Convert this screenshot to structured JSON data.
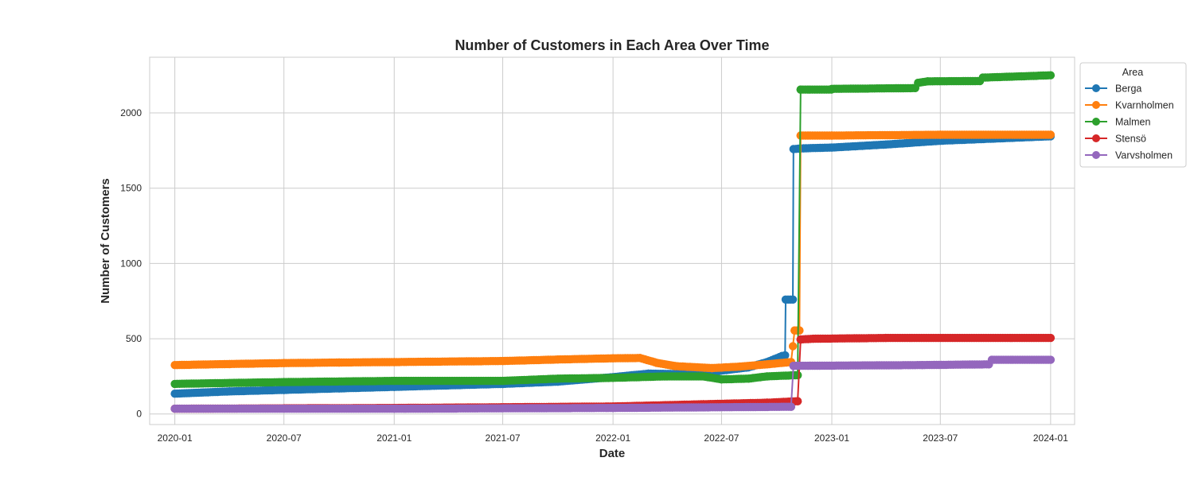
{
  "chart_data": {
    "type": "line",
    "title": "Number of Customers in Each Area Over Time",
    "xlabel": "Date",
    "ylabel": "Number of Customers",
    "x_range": [
      "2019-11-20",
      "2024-02-10"
    ],
    "ylim": [
      -70,
      2370
    ],
    "x_ticks": [
      "2020-01-01",
      "2020-07-01",
      "2021-01-01",
      "2021-07-01",
      "2022-01-01",
      "2022-07-01",
      "2023-01-01",
      "2023-07-01",
      "2024-01-01"
    ],
    "x_tick_labels": [
      "2020-01",
      "2020-07",
      "2021-01",
      "2021-07",
      "2022-01",
      "2022-07",
      "2023-01",
      "2023-07",
      "2024-01"
    ],
    "y_ticks": [
      0,
      500,
      1000,
      1500,
      2000
    ],
    "y_tick_labels": [
      "0",
      "500",
      "1000",
      "1500",
      "2000"
    ],
    "grid": true,
    "legend": {
      "title": "Area",
      "placement": "upper right, outside plot"
    },
    "series": [
      {
        "name": "Berga",
        "color": "#1f77b4",
        "points": [
          [
            "2020-01-01",
            135
          ],
          [
            "2020-04-01",
            150
          ],
          [
            "2020-07-01",
            160
          ],
          [
            "2020-10-01",
            170
          ],
          [
            "2021-01-01",
            180
          ],
          [
            "2021-04-01",
            190
          ],
          [
            "2021-07-01",
            200
          ],
          [
            "2021-10-01",
            215
          ],
          [
            "2022-01-01",
            245
          ],
          [
            "2022-03-01",
            268
          ],
          [
            "2022-05-01",
            265
          ],
          [
            "2022-06-15",
            280
          ],
          [
            "2022-08-15",
            310
          ],
          [
            "2022-09-15",
            345
          ],
          [
            "2022-10-10",
            385
          ],
          [
            "2022-10-15",
            390
          ],
          [
            "2022-10-16",
            760
          ],
          [
            "2022-10-28",
            760
          ],
          [
            "2022-10-29",
            1760
          ],
          [
            "2022-11-15",
            1765
          ],
          [
            "2023-01-01",
            1770
          ],
          [
            "2023-04-01",
            1790
          ],
          [
            "2023-07-01",
            1815
          ],
          [
            "2023-10-01",
            1830
          ],
          [
            "2024-01-01",
            1845
          ]
        ]
      },
      {
        "name": "Kvarnholmen",
        "color": "#ff7f0e",
        "points": [
          [
            "2020-01-01",
            325
          ],
          [
            "2020-04-01",
            332
          ],
          [
            "2020-07-01",
            338
          ],
          [
            "2020-10-01",
            342
          ],
          [
            "2021-01-01",
            345
          ],
          [
            "2021-07-01",
            352
          ],
          [
            "2021-10-01",
            362
          ],
          [
            "2022-01-01",
            370
          ],
          [
            "2022-02-15",
            372
          ],
          [
            "2022-03-15",
            340
          ],
          [
            "2022-04-15",
            318
          ],
          [
            "2022-06-15",
            305
          ],
          [
            "2022-08-01",
            315
          ],
          [
            "2022-09-15",
            330
          ],
          [
            "2022-10-25",
            345
          ],
          [
            "2022-10-31",
            555
          ],
          [
            "2022-11-08",
            555
          ],
          [
            "2022-11-10",
            1850
          ],
          [
            "2023-01-01",
            1850
          ],
          [
            "2023-07-01",
            1855
          ],
          [
            "2024-01-01",
            1855
          ]
        ]
      },
      {
        "name": "Malmen",
        "color": "#2ca02c",
        "points": [
          [
            "2020-01-01",
            200
          ],
          [
            "2020-07-01",
            212
          ],
          [
            "2021-01-01",
            220
          ],
          [
            "2021-07-01",
            220
          ],
          [
            "2021-10-01",
            235
          ],
          [
            "2022-01-01",
            240
          ],
          [
            "2022-04-01",
            250
          ],
          [
            "2022-06-01",
            250
          ],
          [
            "2022-07-01",
            230
          ],
          [
            "2022-08-15",
            235
          ],
          [
            "2022-09-15",
            250
          ],
          [
            "2022-11-05",
            258
          ],
          [
            "2022-11-10",
            2155
          ],
          [
            "2022-12-31",
            2155
          ],
          [
            "2023-01-01",
            2160
          ],
          [
            "2023-05-20",
            2165
          ],
          [
            "2023-05-25",
            2200
          ],
          [
            "2023-06-10",
            2210
          ],
          [
            "2023-09-05",
            2212
          ],
          [
            "2023-09-10",
            2235
          ],
          [
            "2023-10-20",
            2240
          ],
          [
            "2024-01-01",
            2250
          ]
        ]
      },
      {
        "name": "Stensö",
        "color": "#d62728",
        "points": [
          [
            "2020-01-01",
            35
          ],
          [
            "2021-01-01",
            40
          ],
          [
            "2022-01-01",
            50
          ],
          [
            "2022-06-01",
            65
          ],
          [
            "2022-09-15",
            75
          ],
          [
            "2022-11-05",
            85
          ],
          [
            "2022-11-10",
            495
          ],
          [
            "2022-12-01",
            500
          ],
          [
            "2023-04-01",
            505
          ],
          [
            "2024-01-01",
            505
          ]
        ]
      },
      {
        "name": "Varvsholmen",
        "color": "#9467bd",
        "points": [
          [
            "2020-01-01",
            35
          ],
          [
            "2021-01-01",
            35
          ],
          [
            "2022-01-01",
            40
          ],
          [
            "2022-10-25",
            48
          ],
          [
            "2022-10-29",
            320
          ],
          [
            "2023-06-01",
            325
          ],
          [
            "2023-09-20",
            330
          ],
          [
            "2023-09-25",
            360
          ],
          [
            "2024-01-01",
            360
          ]
        ]
      }
    ]
  }
}
